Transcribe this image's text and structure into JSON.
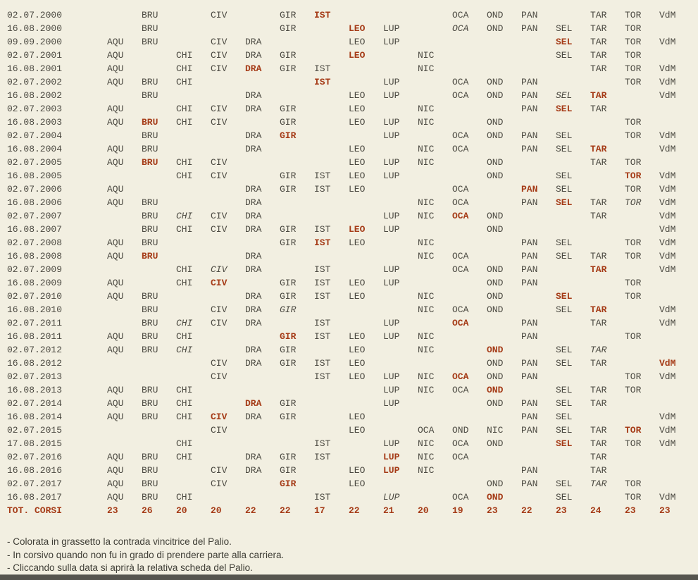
{
  "palette": {
    "background": "#f2efe1",
    "text": "#4b4941",
    "winner_red": "#a53b17",
    "footer_text": "#3f3e36",
    "bottom_bar": "#56554f"
  },
  "column_codes": [
    "AQU",
    "BRU",
    "CHI",
    "CIV",
    "DRA",
    "GIR",
    "IST",
    "LEO",
    "LUP",
    "NIC",
    "OCA",
    "OND",
    "PAN",
    "SEL",
    "TAR",
    "TOR",
    "VdM"
  ],
  "rows": [
    {
      "date": "02.07.2000",
      "cells": [
        "",
        "BRU",
        "",
        "CIV",
        "",
        "GIR",
        "b:IST",
        "",
        "",
        "",
        "OCA",
        "OND",
        "PAN",
        "",
        "TAR",
        "TOR",
        "VdM"
      ]
    },
    {
      "date": "16.08.2000",
      "cells": [
        "",
        "BRU",
        "",
        "",
        "",
        "GIR",
        "",
        "b:LEO",
        "LUP",
        "",
        "i:OCA",
        "OND",
        "PAN",
        "SEL",
        "TAR",
        "TOR",
        ""
      ]
    },
    {
      "date": "09.09.2000",
      "cells": [
        "AQU",
        "BRU",
        "",
        "CIV",
        "DRA",
        "",
        "",
        "LEO",
        "LUP",
        "",
        "",
        "",
        "",
        "b:SEL",
        "TAR",
        "TOR",
        "VdM"
      ]
    },
    {
      "date": "02.07.2001",
      "cells": [
        "AQU",
        "",
        "CHI",
        "CIV",
        "DRA",
        "GIR",
        "",
        "b:LEO",
        "",
        "NIC",
        "",
        "",
        "",
        "SEL",
        "TAR",
        "TOR",
        ""
      ]
    },
    {
      "date": "16.08.2001",
      "cells": [
        "AQU",
        "",
        "CHI",
        "CIV",
        "b:DRA",
        "GIR",
        "IST",
        "",
        "",
        "NIC",
        "",
        "",
        "",
        "",
        "TAR",
        "TOR",
        "VdM"
      ]
    },
    {
      "date": "02.07.2002",
      "cells": [
        "AQU",
        "BRU",
        "CHI",
        "",
        "",
        "",
        "b:IST",
        "",
        "LUP",
        "",
        "OCA",
        "OND",
        "PAN",
        "",
        "",
        "TOR",
        "VdM"
      ]
    },
    {
      "date": "16.08.2002",
      "cells": [
        "",
        "BRU",
        "",
        "",
        "DRA",
        "",
        "",
        "LEO",
        "LUP",
        "",
        "OCA",
        "OND",
        "PAN",
        "i:SEL",
        "b:TAR",
        "",
        "VdM"
      ]
    },
    {
      "date": "02.07.2003",
      "cells": [
        "AQU",
        "",
        "CHI",
        "CIV",
        "DRA",
        "GIR",
        "",
        "LEO",
        "",
        "NIC",
        "",
        "",
        "PAN",
        "b:SEL",
        "TAR",
        "",
        ""
      ]
    },
    {
      "date": "16.08.2003",
      "cells": [
        "AQU",
        "b:BRU",
        "CHI",
        "CIV",
        "",
        "GIR",
        "",
        "LEO",
        "LUP",
        "NIC",
        "",
        "OND",
        "",
        "",
        "",
        "TOR",
        ""
      ]
    },
    {
      "date": "02.07.2004",
      "cells": [
        "",
        "BRU",
        "",
        "",
        "DRA",
        "b:GIR",
        "",
        "",
        "LUP",
        "",
        "OCA",
        "OND",
        "PAN",
        "SEL",
        "",
        "TOR",
        "VdM"
      ]
    },
    {
      "date": "16.08.2004",
      "cells": [
        "AQU",
        "BRU",
        "",
        "",
        "DRA",
        "",
        "",
        "LEO",
        "",
        "NIC",
        "OCA",
        "",
        "PAN",
        "SEL",
        "b:TAR",
        "",
        "VdM"
      ]
    },
    {
      "date": "02.07.2005",
      "cells": [
        "AQU",
        "b:BRU",
        "CHI",
        "CIV",
        "",
        "",
        "",
        "LEO",
        "LUP",
        "NIC",
        "",
        "OND",
        "",
        "",
        "TAR",
        "TOR",
        ""
      ]
    },
    {
      "date": "16.08.2005",
      "cells": [
        "",
        "",
        "CHI",
        "CIV",
        "",
        "GIR",
        "IST",
        "LEO",
        "LUP",
        "",
        "",
        "OND",
        "",
        "SEL",
        "",
        "b:TOR",
        "VdM"
      ]
    },
    {
      "date": "02.07.2006",
      "cells": [
        "AQU",
        "",
        "",
        "",
        "DRA",
        "GIR",
        "IST",
        "LEO",
        "",
        "",
        "OCA",
        "",
        "b:PAN",
        "SEL",
        "",
        "TOR",
        "VdM"
      ]
    },
    {
      "date": "16.08.2006",
      "cells": [
        "AQU",
        "BRU",
        "",
        "",
        "DRA",
        "",
        "",
        "",
        "",
        "NIC",
        "OCA",
        "",
        "PAN",
        "b:SEL",
        "TAR",
        "i:TOR",
        "VdM"
      ]
    },
    {
      "date": "02.07.2007",
      "cells": [
        "",
        "BRU",
        "i:CHI",
        "CIV",
        "DRA",
        "",
        "",
        "",
        "LUP",
        "NIC",
        "b:OCA",
        "OND",
        "",
        "",
        "TAR",
        "",
        "VdM"
      ]
    },
    {
      "date": "16.08.2007",
      "cells": [
        "",
        "BRU",
        "CHI",
        "CIV",
        "DRA",
        "GIR",
        "IST",
        "b:LEO",
        "LUP",
        "",
        "",
        "OND",
        "",
        "",
        "",
        "",
        "VdM"
      ]
    },
    {
      "date": "02.07.2008",
      "cells": [
        "AQU",
        "BRU",
        "",
        "",
        "",
        "GIR",
        "b:IST",
        "LEO",
        "",
        "NIC",
        "",
        "",
        "PAN",
        "SEL",
        "",
        "TOR",
        "VdM"
      ]
    },
    {
      "date": "16.08.2008",
      "cells": [
        "AQU",
        "b:BRU",
        "",
        "",
        "DRA",
        "",
        "",
        "",
        "",
        "NIC",
        "OCA",
        "",
        "PAN",
        "SEL",
        "TAR",
        "TOR",
        "VdM"
      ]
    },
    {
      "date": "02.07.2009",
      "cells": [
        "",
        "",
        "CHI",
        "i:CIV",
        "DRA",
        "",
        "IST",
        "",
        "LUP",
        "",
        "OCA",
        "OND",
        "PAN",
        "",
        "b:TAR",
        "",
        "VdM"
      ]
    },
    {
      "date": "16.08.2009",
      "cells": [
        "AQU",
        "",
        "CHI",
        "b:CIV",
        "",
        "GIR",
        "IST",
        "LEO",
        "LUP",
        "",
        "",
        "OND",
        "PAN",
        "",
        "",
        "TOR",
        ""
      ]
    },
    {
      "date": "02.07.2010",
      "cells": [
        "AQU",
        "BRU",
        "",
        "",
        "DRA",
        "GIR",
        "IST",
        "LEO",
        "",
        "NIC",
        "",
        "OND",
        "",
        "b:SEL",
        "",
        "TOR",
        ""
      ]
    },
    {
      "date": "16.08.2010",
      "cells": [
        "",
        "BRU",
        "",
        "CIV",
        "DRA",
        "i:GIR",
        "",
        "",
        "",
        "NIC",
        "OCA",
        "OND",
        "",
        "SEL",
        "b:TAR",
        "",
        "VdM"
      ]
    },
    {
      "date": "02.07.2011",
      "cells": [
        "",
        "BRU",
        "i:CHI",
        "CIV",
        "DRA",
        "",
        "IST",
        "",
        "LUP",
        "",
        "b:OCA",
        "",
        "PAN",
        "",
        "TAR",
        "",
        "VdM"
      ]
    },
    {
      "date": "16.08.2011",
      "cells": [
        "AQU",
        "BRU",
        "CHI",
        "",
        "",
        "b:GIR",
        "IST",
        "LEO",
        "LUP",
        "NIC",
        "",
        "",
        "PAN",
        "",
        "",
        "TOR",
        ""
      ]
    },
    {
      "date": "02.07.2012",
      "cells": [
        "AQU",
        "BRU",
        "i:CHI",
        "",
        "DRA",
        "GIR",
        "",
        "LEO",
        "",
        "NIC",
        "",
        "b:OND",
        "",
        "SEL",
        "i:TAR",
        "",
        ""
      ]
    },
    {
      "date": "16.08.2012",
      "cells": [
        "",
        "",
        "",
        "CIV",
        "DRA",
        "GIR",
        "IST",
        "LEO",
        "",
        "",
        "",
        "OND",
        "PAN",
        "SEL",
        "TAR",
        "",
        "b:VdM"
      ]
    },
    {
      "date": "02.07.2013",
      "cells": [
        "",
        "",
        "",
        "CIV",
        "",
        "",
        "IST",
        "LEO",
        "LUP",
        "NIC",
        "b:OCA",
        "OND",
        "PAN",
        "",
        "",
        "TOR",
        "VdM"
      ]
    },
    {
      "date": "16.08.2013",
      "cells": [
        "AQU",
        "BRU",
        "CHI",
        "",
        "",
        "",
        "",
        "",
        "LUP",
        "NIC",
        "OCA",
        "b:OND",
        "",
        "SEL",
        "TAR",
        "TOR",
        ""
      ]
    },
    {
      "date": "02.07.2014",
      "cells": [
        "AQU",
        "BRU",
        "CHI",
        "",
        "b:DRA",
        "GIR",
        "",
        "",
        "LUP",
        "",
        "",
        "OND",
        "PAN",
        "SEL",
        "TAR",
        "",
        ""
      ]
    },
    {
      "date": "16.08.2014",
      "cells": [
        "AQU",
        "BRU",
        "CHI",
        "b:CIV",
        "DRA",
        "GIR",
        "",
        "LEO",
        "",
        "",
        "",
        "",
        "PAN",
        "SEL",
        "",
        "",
        "VdM"
      ]
    },
    {
      "date": "02.07.2015",
      "cells": [
        "",
        "",
        "",
        "CIV",
        "",
        "",
        "",
        "LEO",
        "",
        "OCA",
        "OND",
        "NIC",
        "PAN",
        "SEL",
        "TAR",
        "b:TOR",
        "VdM"
      ]
    },
    {
      "date": "17.08.2015",
      "cells": [
        "",
        "",
        "CHI",
        "",
        "",
        "",
        "IST",
        "",
        "LUP",
        "NIC",
        "OCA",
        "OND",
        "",
        "b:SEL",
        "TAR",
        "TOR",
        "VdM"
      ]
    },
    {
      "date": "02.07.2016",
      "cells": [
        "AQU",
        "BRU",
        "CHI",
        "",
        "DRA",
        "GIR",
        "IST",
        "",
        "b:LUP",
        "NIC",
        "OCA",
        "",
        "",
        "",
        "TAR",
        "",
        ""
      ]
    },
    {
      "date": "16.08.2016",
      "cells": [
        "AQU",
        "BRU",
        "",
        "CIV",
        "DRA",
        "GIR",
        "",
        "LEO",
        "b:LUP",
        "NIC",
        "",
        "",
        "PAN",
        "",
        "TAR",
        "",
        ""
      ]
    },
    {
      "date": "02.07.2017",
      "cells": [
        "AQU",
        "BRU",
        "",
        "CIV",
        "",
        "b:GIR",
        "",
        "LEO",
        "",
        "",
        "",
        "OND",
        "PAN",
        "SEL",
        "i:TAR",
        "TOR",
        ""
      ]
    },
    {
      "date": "16.08.2017",
      "cells": [
        "AQU",
        "BRU",
        "CHI",
        "",
        "",
        "",
        "IST",
        "",
        "i:LUP",
        "",
        "OCA",
        "b:OND",
        "",
        "SEL",
        "",
        "TOR",
        "VdM"
      ]
    }
  ],
  "totals": {
    "label": "TOT. CORSI",
    "values": [
      "23",
      "26",
      "20",
      "20",
      "22",
      "22",
      "17",
      "22",
      "21",
      "20",
      "19",
      "23",
      "22",
      "23",
      "24",
      "23",
      "23"
    ]
  },
  "footnotes": [
    "- Colorata in grassetto la contrada vincitrice del Palio.",
    "- In corsivo quando non fu in grado di prendere parte alla carriera.",
    "- Cliccando sulla data si aprirà la relativa scheda del Palio."
  ]
}
